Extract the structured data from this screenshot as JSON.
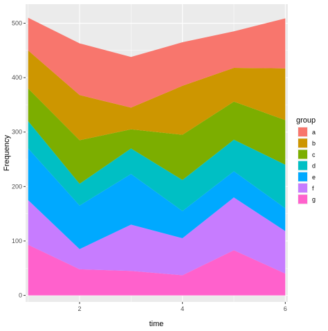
{
  "chart_data": {
    "type": "area",
    "stacked": true,
    "xlabel": "time",
    "ylabel": "Frequency",
    "x": [
      1,
      2,
      3,
      4,
      5,
      6
    ],
    "xticks": [
      "2",
      "4",
      "6"
    ],
    "yticks": [
      "0",
      "100",
      "200",
      "300",
      "400",
      "500"
    ],
    "xlim": [
      0.95,
      6.05
    ],
    "ylim": [
      -12,
      535
    ],
    "grid": true,
    "legend": {
      "title": "group",
      "position": "right"
    },
    "series": [
      {
        "name": "g",
        "color": "#FF61CC",
        "values": [
          93,
          48,
          45,
          37,
          83,
          40
        ]
      },
      {
        "name": "f",
        "color": "#C77CFF",
        "values": [
          82,
          37,
          85,
          68,
          97,
          78
        ]
      },
      {
        "name": "e",
        "color": "#00A9FF",
        "values": [
          95,
          80,
          93,
          50,
          48,
          42
        ]
      },
      {
        "name": "d",
        "color": "#00BFC4",
        "values": [
          50,
          40,
          47,
          57,
          58,
          80
        ]
      },
      {
        "name": "c",
        "color": "#7CAE00",
        "values": [
          60,
          80,
          35,
          83,
          70,
          82
        ]
      },
      {
        "name": "b",
        "color": "#CD9600",
        "values": [
          70,
          83,
          40,
          90,
          62,
          95
        ]
      },
      {
        "name": "a",
        "color": "#F8766D",
        "values": [
          60,
          95,
          93,
          80,
          67,
          92
        ]
      }
    ],
    "legend_order": [
      "a",
      "b",
      "c",
      "d",
      "e",
      "f",
      "g"
    ]
  }
}
